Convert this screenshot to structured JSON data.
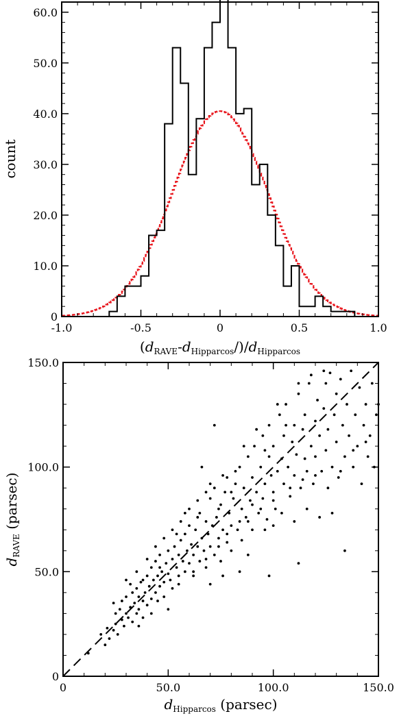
{
  "chart_data": [
    {
      "type": "histogram",
      "ylabel": "count",
      "xlabel": {
        "open": "(",
        "d1": "d",
        "d1_sub": "RAVE",
        "minus": "-",
        "d2": "d",
        "d2_sub": "Hipparcos",
        "close": "/)/",
        "d3": "d",
        "d3_sub": "Hipparcos"
      },
      "xlim": [
        -1.0,
        1.0
      ],
      "ylim": [
        0,
        62
      ],
      "x_ticks": [
        -1.0,
        -0.5,
        0.0,
        0.5,
        1.0
      ],
      "x_tick_labels": [
        "-1.0",
        "-0.5",
        "0",
        "0.5",
        "1.0"
      ],
      "y_ticks": [
        0,
        10,
        20,
        30,
        40,
        50,
        60
      ],
      "y_tick_labels": [
        "0",
        "10.0",
        "20.0",
        "30.0",
        "40.0",
        "50.0",
        "60.0"
      ],
      "observed": {
        "color": "#000000",
        "bin_edges": [
          -0.7,
          -0.65,
          -0.6,
          -0.55,
          -0.5,
          -0.45,
          -0.4,
          -0.35,
          -0.3,
          -0.25,
          -0.2,
          -0.15,
          -0.1,
          -0.05,
          0.0,
          0.05,
          0.1,
          0.15,
          0.2,
          0.25,
          0.3,
          0.35,
          0.4,
          0.45,
          0.5,
          0.55,
          0.6,
          0.65,
          0.7,
          0.75,
          0.8,
          0.85
        ],
        "counts": [
          1,
          4,
          6,
          6,
          8,
          16,
          17,
          38,
          53,
          46,
          28,
          39,
          53,
          58,
          65,
          53,
          40,
          41,
          26,
          30,
          20,
          14,
          6,
          10,
          2,
          2,
          4,
          2,
          1,
          1,
          1
        ]
      },
      "gaussian": {
        "color": "#e8141b",
        "style": "dashed-step",
        "peak": 40.5,
        "mean": 0.0,
        "sigma": 0.3
      }
    },
    {
      "type": "scatter",
      "xlabel": {
        "d": "d",
        "sub": "Hipparcos",
        "rest": " (parsec)"
      },
      "ylabel": {
        "d": "d",
        "sub": "RAVE",
        "rest": " (parsec)"
      },
      "xlim": [
        0,
        150
      ],
      "ylim": [
        0,
        150
      ],
      "x_ticks": [
        0,
        50,
        100,
        150
      ],
      "x_tick_labels": [
        "0",
        "50.0",
        "100.0",
        "150.0"
      ],
      "y_ticks": [
        0,
        50,
        100,
        150
      ],
      "y_tick_labels": [
        "0",
        "50.0",
        "100.0",
        "150.0"
      ],
      "reference_line": {
        "style": "dashed",
        "slope": 1,
        "intercept": 0
      },
      "points": [
        [
          12,
          11
        ],
        [
          18,
          20
        ],
        [
          20,
          15
        ],
        [
          21,
          23
        ],
        [
          22,
          18
        ],
        [
          24,
          22
        ],
        [
          25,
          25
        ],
        [
          25,
          30
        ],
        [
          26,
          20
        ],
        [
          27,
          32
        ],
        [
          28,
          27
        ],
        [
          28,
          36
        ],
        [
          29,
          24
        ],
        [
          30,
          30
        ],
        [
          30,
          38
        ],
        [
          31,
          28
        ],
        [
          32,
          33
        ],
        [
          33,
          26
        ],
        [
          33,
          40
        ],
        [
          34,
          35
        ],
        [
          35,
          30
        ],
        [
          35,
          42
        ],
        [
          36,
          38
        ],
        [
          36,
          32
        ],
        [
          37,
          45
        ],
        [
          38,
          36
        ],
        [
          38,
          28
        ],
        [
          39,
          40
        ],
        [
          40,
          34
        ],
        [
          40,
          48
        ],
        [
          41,
          43
        ],
        [
          42,
          37
        ],
        [
          42,
          52
        ],
        [
          43,
          46
        ],
        [
          44,
          40
        ],
        [
          44,
          55
        ],
        [
          45,
          48
        ],
        [
          46,
          43
        ],
        [
          46,
          58
        ],
        [
          47,
          50
        ],
        [
          48,
          45
        ],
        [
          48,
          38
        ],
        [
          49,
          54
        ],
        [
          50,
          49
        ],
        [
          50,
          60
        ],
        [
          51,
          46
        ],
        [
          52,
          56
        ],
        [
          52,
          42
        ],
        [
          53,
          62
        ],
        [
          54,
          52
        ],
        [
          55,
          58
        ],
        [
          55,
          48
        ],
        [
          56,
          65
        ],
        [
          57,
          55
        ],
        [
          58,
          50
        ],
        [
          58,
          68
        ],
        [
          59,
          60
        ],
        [
          60,
          54
        ],
        [
          60,
          72
        ],
        [
          61,
          63
        ],
        [
          62,
          58
        ],
        [
          62,
          48
        ],
        [
          63,
          70
        ],
        [
          64,
          62
        ],
        [
          65,
          55
        ],
        [
          65,
          78
        ],
        [
          66,
          66
        ],
        [
          67,
          60
        ],
        [
          68,
          74
        ],
        [
          68,
          52
        ],
        [
          69,
          68
        ],
        [
          70,
          62
        ],
        [
          70,
          85
        ],
        [
          71,
          72
        ],
        [
          72,
          58
        ],
        [
          72,
          90
        ],
        [
          73,
          76
        ],
        [
          74,
          66
        ],
        [
          75,
          82
        ],
        [
          75,
          55
        ],
        [
          76,
          70
        ],
        [
          77,
          88
        ],
        [
          78,
          64
        ],
        [
          78,
          95
        ],
        [
          79,
          78
        ],
        [
          80,
          72
        ],
        [
          80,
          60
        ],
        [
          81,
          85
        ],
        [
          82,
          92
        ],
        [
          83,
          70
        ],
        [
          84,
          100
        ],
        [
          85,
          80
        ],
        [
          85,
          65
        ],
        [
          86,
          90
        ],
        [
          87,
          76
        ],
        [
          88,
          105
        ],
        [
          88,
          58
        ],
        [
          89,
          84
        ],
        [
          90,
          95
        ],
        [
          90,
          70
        ],
        [
          91,
          110
        ],
        [
          92,
          88
        ],
        [
          93,
          78
        ],
        [
          94,
          100
        ],
        [
          95,
          115
        ],
        [
          95,
          85
        ],
        [
          96,
          92
        ],
        [
          97,
          75
        ],
        [
          98,
          105
        ],
        [
          98,
          120
        ],
        [
          99,
          96
        ],
        [
          100,
          88
        ],
        [
          100,
          110
        ],
        [
          101,
          80
        ],
        [
          102,
          98
        ],
        [
          103,
          125
        ],
        [
          104,
          104
        ],
        [
          105,
          92
        ],
        [
          105,
          115
        ],
        [
          106,
          130
        ],
        [
          107,
          100
        ],
        [
          108,
          86
        ],
        [
          109,
          112
        ],
        [
          110,
          120
        ],
        [
          110,
          96
        ],
        [
          111,
          106
        ],
        [
          112,
          135
        ],
        [
          113,
          90
        ],
        [
          114,
          118
        ],
        [
          115,
          104
        ],
        [
          115,
          125
        ],
        [
          116,
          98
        ],
        [
          117,
          140
        ],
        [
          118,
          110
        ],
        [
          119,
          92
        ],
        [
          120,
          122
        ],
        [
          120,
          105
        ],
        [
          121,
          132
        ],
        [
          122,
          115
        ],
        [
          123,
          98
        ],
        [
          124,
          128
        ],
        [
          125,
          140
        ],
        [
          125,
          108
        ],
        [
          126,
          118
        ],
        [
          127,
          145
        ],
        [
          128,
          100
        ],
        [
          129,
          125
        ],
        [
          130,
          112
        ],
        [
          130,
          135
        ],
        [
          131,
          95
        ],
        [
          132,
          142
        ],
        [
          133,
          120
        ],
        [
          134,
          105
        ],
        [
          135,
          130
        ],
        [
          136,
          115
        ],
        [
          137,
          146
        ],
        [
          138,
          100
        ],
        [
          139,
          125
        ],
        [
          140,
          110
        ],
        [
          141,
          138
        ],
        [
          142,
          92
        ],
        [
          143,
          120
        ],
        [
          144,
          130
        ],
        [
          145,
          105
        ],
        [
          146,
          115
        ],
        [
          147,
          140
        ],
        [
          148,
          100
        ],
        [
          149,
          125
        ],
        [
          24,
          35
        ],
        [
          30,
          46
        ],
        [
          35,
          50
        ],
        [
          40,
          56
        ],
        [
          44,
          62
        ],
        [
          48,
          66
        ],
        [
          52,
          70
        ],
        [
          56,
          74
        ],
        [
          60,
          80
        ],
        [
          64,
          84
        ],
        [
          68,
          88
        ],
        [
          72,
          120
        ],
        [
          66,
          100
        ],
        [
          58,
          78
        ],
        [
          54,
          68
        ],
        [
          46,
          52
        ],
        [
          38,
          46
        ],
        [
          32,
          44
        ],
        [
          64,
          76
        ],
        [
          70,
          92
        ],
        [
          76,
          96
        ],
        [
          82,
          98
        ],
        [
          86,
          110
        ],
        [
          92,
          118
        ],
        [
          96,
          108
        ],
        [
          102,
          130
        ],
        [
          106,
          120
        ],
        [
          112,
          140
        ],
        [
          118,
          144
        ],
        [
          124,
          146
        ],
        [
          74,
          80
        ],
        [
          80,
          88
        ],
        [
          84,
          74
        ],
        [
          90,
          82
        ],
        [
          96,
          70
        ],
        [
          100,
          72
        ],
        [
          104,
          78
        ],
        [
          110,
          74
        ],
        [
          116,
          80
        ],
        [
          122,
          76
        ],
        [
          128,
          78
        ],
        [
          134,
          60
        ],
        [
          98,
          48
        ],
        [
          112,
          54
        ],
        [
          84,
          50
        ],
        [
          76,
          48
        ],
        [
          70,
          44
        ],
        [
          50,
          32
        ],
        [
          42,
          30
        ],
        [
          36,
          24
        ],
        [
          45,
          36
        ],
        [
          55,
          44
        ],
        [
          62,
          50
        ],
        [
          68,
          56
        ],
        [
          74,
          62
        ],
        [
          78,
          68
        ],
        [
          88,
          74
        ],
        [
          94,
          80
        ],
        [
          100,
          84
        ],
        [
          108,
          90
        ],
        [
          114,
          94
        ],
        [
          120,
          96
        ],
        [
          126,
          90
        ],
        [
          132,
          98
        ],
        [
          138,
          108
        ],
        [
          144,
          112
        ],
        [
          150,
          130
        ]
      ]
    }
  ]
}
